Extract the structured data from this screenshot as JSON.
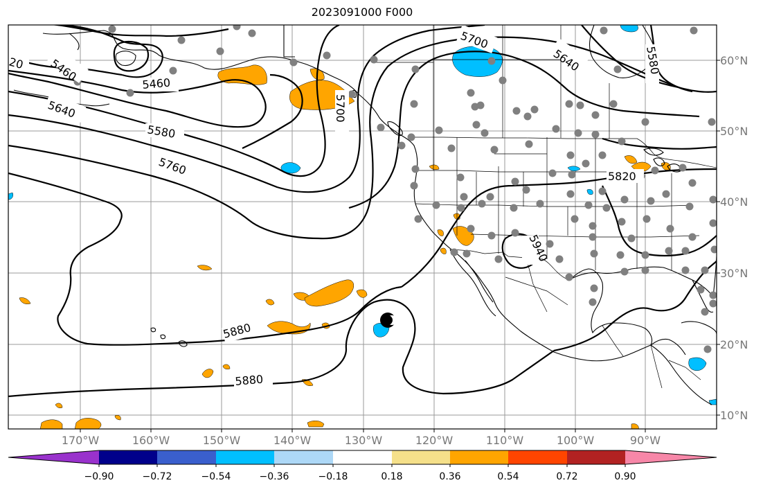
{
  "title": "2023091000 F000",
  "lon_labels": [
    "170°W",
    "160°W",
    "150°W",
    "140°W",
    "130°W",
    "120°W",
    "110°W",
    "100°W",
    "90°W"
  ],
  "lat_labels": [
    "60°N",
    "50°N",
    "40°N",
    "30°N",
    "20°N",
    "10°N"
  ],
  "contour_labels": [
    "5460",
    "5460",
    "5580",
    "5640",
    "5700",
    "5760",
    "5880",
    "5880",
    "5820",
    "5640",
    "5700",
    "5580",
    "5700",
    "5940",
    "20"
  ],
  "colorbar": {
    "ticks": [
      "−0.90",
      "−0.72",
      "−0.54",
      "−0.36",
      "−0.18",
      "0.18",
      "0.36",
      "0.54",
      "0.72",
      "0.90"
    ],
    "colors": [
      "#9932CC",
      "#00008B",
      "#3A5FCD",
      "#00BFFF",
      "#ADD8F7",
      "#FFFFFF",
      "#F5E08A",
      "#FFA500",
      "#FF4500",
      "#B22222",
      "#F787A8"
    ]
  }
}
